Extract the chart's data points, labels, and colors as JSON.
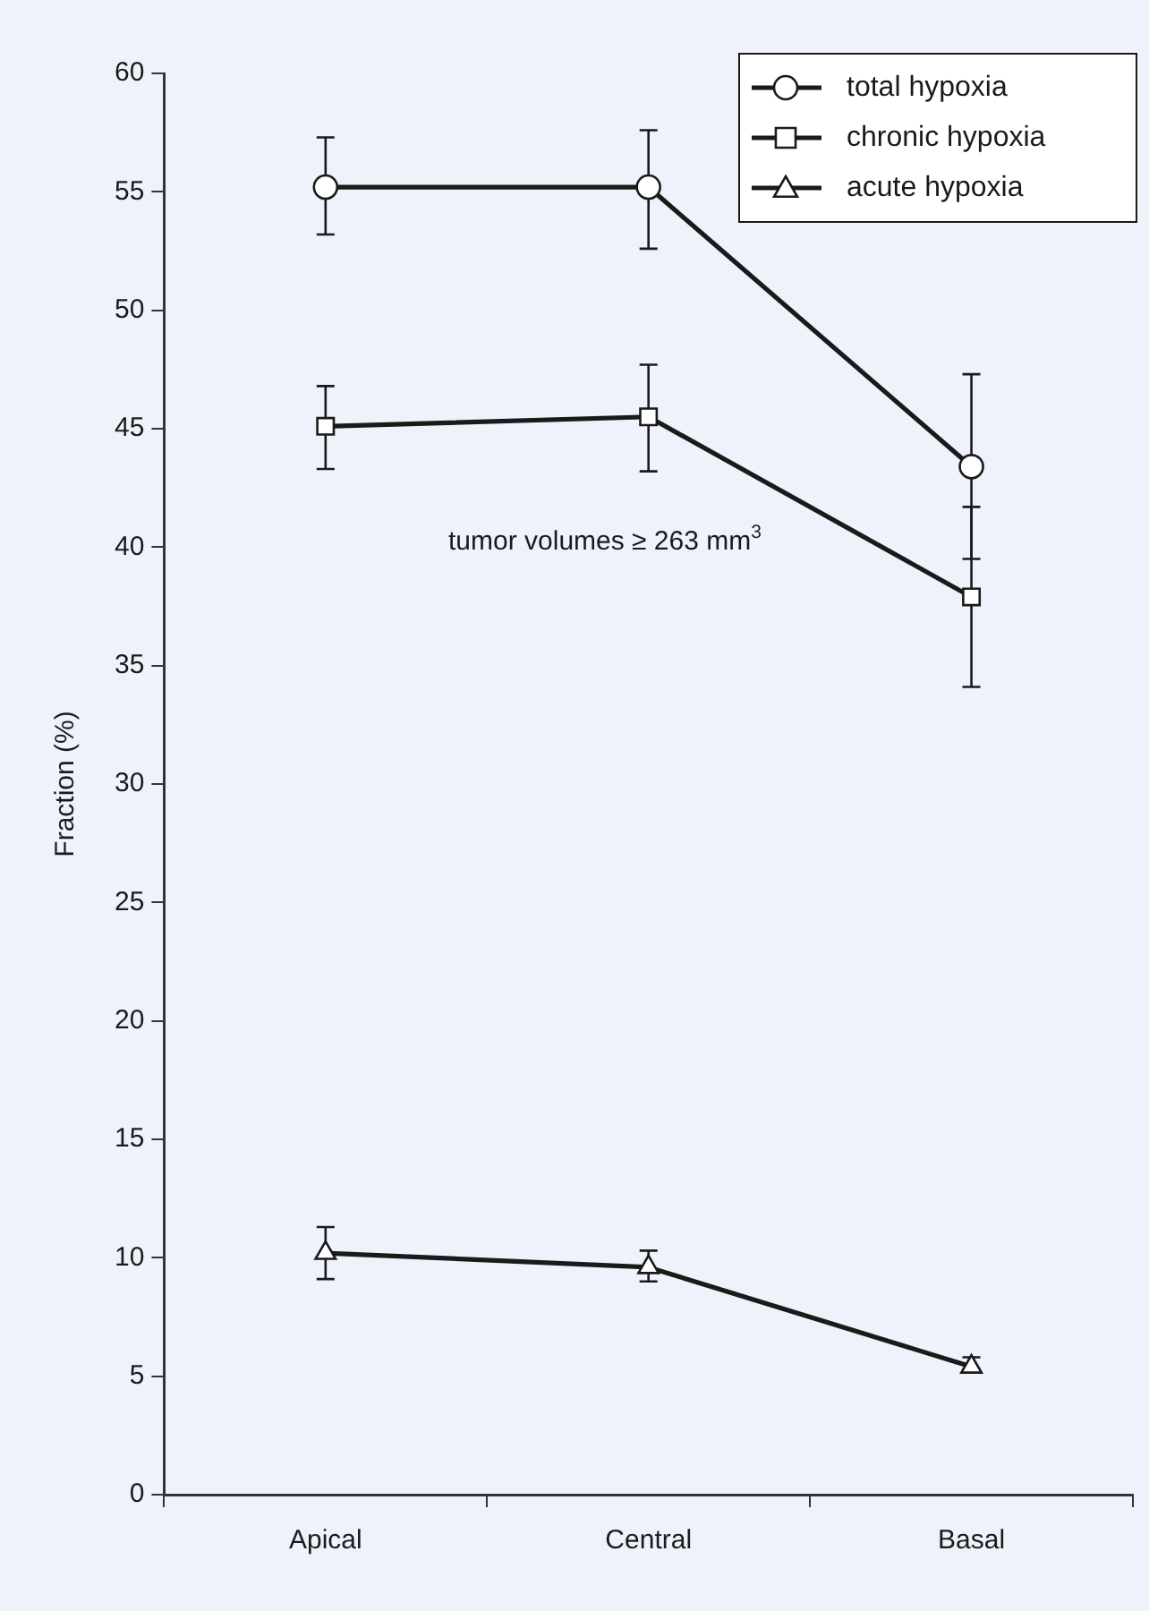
{
  "chart_data": {
    "type": "line",
    "ylabel": "Fraction (%)",
    "categories": [
      "Apical",
      "Central",
      "Basal"
    ],
    "series": [
      {
        "name": "total hypoxia",
        "color": "#1a1a1a",
        "marker": "circle",
        "values": [
          55.2,
          55.2,
          43.4
        ],
        "errors": [
          [
            53.2,
            57.3
          ],
          [
            52.6,
            57.6
          ],
          [
            39.5,
            47.3
          ]
        ]
      },
      {
        "name": "chronic hypoxia",
        "color": "#1a1a1a",
        "marker": "square",
        "values": [
          45.1,
          45.5,
          37.9
        ],
        "errors": [
          [
            43.3,
            46.8
          ],
          [
            43.2,
            47.7
          ],
          [
            34.1,
            41.7
          ]
        ]
      },
      {
        "name": "acute hypoxia",
        "color": "#1a1a1a",
        "marker": "triangle",
        "values": [
          10.2,
          9.6,
          5.4
        ],
        "errors": [
          [
            9.1,
            11.3
          ],
          [
            9.0,
            10.3
          ],
          [
            5.3,
            5.8
          ]
        ]
      }
    ],
    "ylim": [
      0,
      60
    ],
    "yticks": [
      0,
      5,
      10,
      15,
      20,
      25,
      30,
      35,
      40,
      45,
      50,
      55,
      60
    ],
    "grid": false,
    "legend": "top right",
    "annotations": [
      "tumor volumes ≥ 263 mm$^{3}$"
    ]
  }
}
